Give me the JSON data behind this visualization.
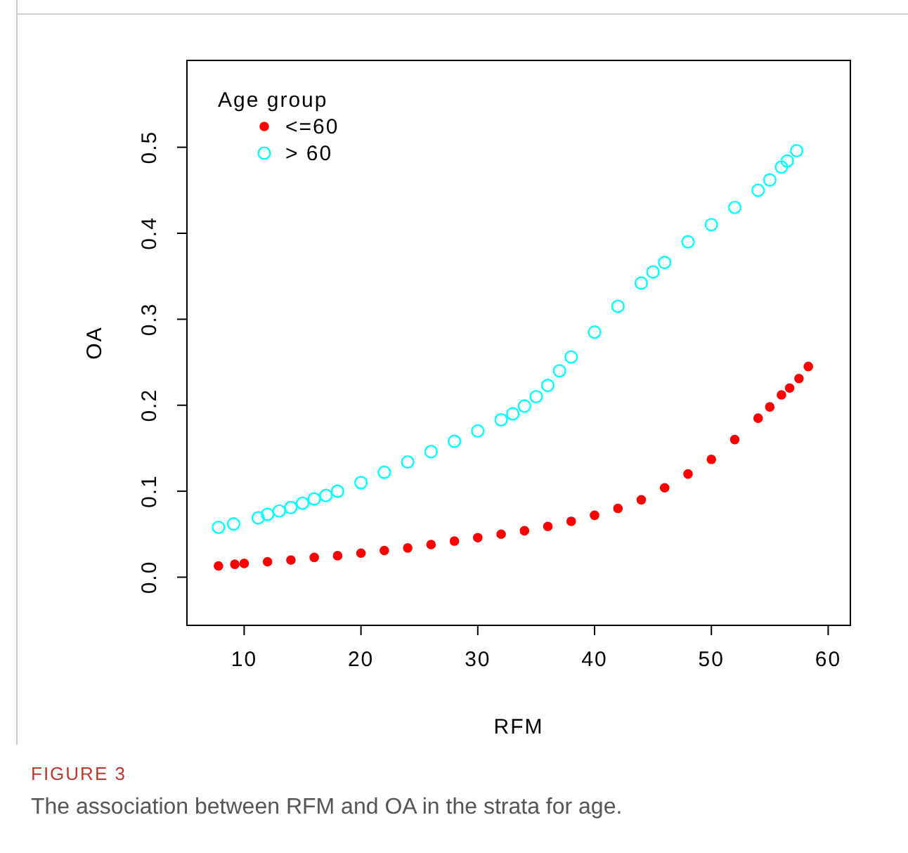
{
  "chart_data": {
    "type": "scatter",
    "xlabel": "RFM",
    "ylabel": "OA",
    "legend_title": "Age group",
    "legend": "top left",
    "marker": "circle",
    "xlim": [
      5.1,
      61.9
    ],
    "ylim": [
      -0.056,
      0.601
    ],
    "xticks": [
      10,
      20,
      30,
      40,
      50,
      60
    ],
    "yticks": [
      {
        "value": 0,
        "label": "0.0"
      },
      0.1,
      0.2,
      0.3,
      0.4,
      0.5
    ],
    "series": [
      {
        "name": "<=60",
        "color": "#ff0000",
        "x": [
          7.8,
          9.2,
          10,
          12,
          14,
          16,
          18,
          20,
          22,
          24,
          26,
          28,
          30,
          32,
          34,
          36,
          38,
          40,
          42,
          44,
          46,
          48,
          50,
          52,
          54,
          55,
          56,
          56.7,
          57.5,
          58.3
        ],
        "values": [
          0.013,
          0.015,
          0.016,
          0.018,
          0.02,
          0.023,
          0.025,
          0.028,
          0.031,
          0.034,
          0.038,
          0.042,
          0.046,
          0.05,
          0.054,
          0.059,
          0.065,
          0.072,
          0.08,
          0.09,
          0.104,
          0.12,
          0.137,
          0.16,
          0.185,
          0.198,
          0.212,
          0.22,
          0.231,
          0.245
        ]
      },
      {
        "name": "> 60",
        "color": "#00ffff",
        "x": [
          7.8,
          9.1,
          11.2,
          12,
          13,
          14,
          15,
          16,
          17,
          18,
          20,
          22,
          24,
          26,
          28,
          30,
          32,
          33,
          34,
          35,
          36,
          37,
          38,
          40,
          42,
          44,
          45,
          46,
          48,
          50,
          52,
          54,
          55,
          56,
          56.5,
          57.3
        ],
        "values": [
          0.058,
          0.062,
          0.069,
          0.073,
          0.077,
          0.081,
          0.086,
          0.091,
          0.095,
          0.1,
          0.11,
          0.122,
          0.134,
          0.146,
          0.158,
          0.17,
          0.183,
          0.19,
          0.199,
          0.21,
          0.223,
          0.24,
          0.256,
          0.285,
          0.315,
          0.342,
          0.355,
          0.366,
          0.39,
          0.41,
          0.43,
          0.45,
          0.462,
          0.477,
          0.484,
          0.496
        ]
      }
    ],
    "annotations": [
      "FIGURE 3",
      "The association between RFM and OA in the strata for age."
    ]
  }
}
